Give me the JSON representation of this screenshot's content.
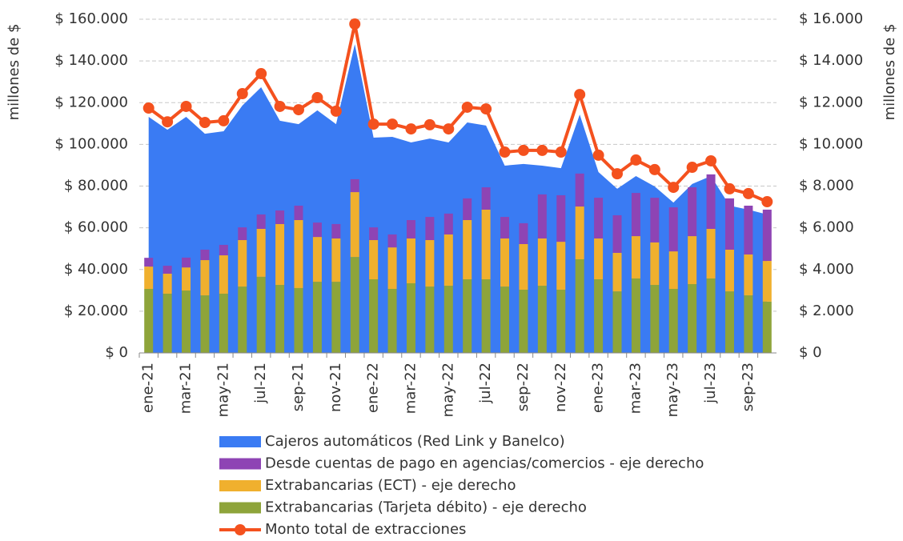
{
  "chart_data": {
    "type": "combo",
    "categories": [
      "ene-21",
      null,
      "mar-21",
      null,
      "may-21",
      null,
      "jul-21",
      null,
      "sep-21",
      null,
      "nov-21",
      null,
      "ene-22",
      null,
      "mar-22",
      null,
      "may-22",
      null,
      "jul-22",
      null,
      "sep-22",
      null,
      "nov-22",
      null,
      "ene-23",
      null,
      "mar-23",
      null,
      "may-23",
      null,
      "jul-23",
      null,
      "sep-23",
      null
    ],
    "series": [
      {
        "name": "Cajeros automáticos (Red Link y Banelco)",
        "type": "area",
        "axis": "y",
        "color": "#3a7bf3",
        "values": [
          113200,
          107000,
          113200,
          105100,
          106300,
          118600,
          127400,
          111300,
          109700,
          116300,
          109700,
          148000,
          103200,
          103600,
          100900,
          102800,
          100900,
          110500,
          109000,
          89800,
          90600,
          89800,
          88600,
          114300,
          86700,
          78700,
          84800,
          79800,
          72100,
          81000,
          84800,
          70600,
          68700,
          66400
        ]
      },
      {
        "name": "Desde cuentas de pago en agencias/comercios - eje derecho",
        "type": "bar",
        "axis": "y2",
        "color": "#8e44b4",
        "values": [
          420,
          380,
          470,
          500,
          500,
          610,
          690,
          650,
          690,
          690,
          690,
          620,
          610,
          620,
          880,
          1110,
          1000,
          1040,
          1070,
          1030,
          1000,
          2110,
          2230,
          1580,
          1950,
          1800,
          2070,
          2140,
          2110,
          2340,
          2610,
          2460,
          2340,
          2460
        ]
      },
      {
        "name": "Extrabancarias (ECT) - eje derecho",
        "type": "bar",
        "axis": "y2",
        "color": "#f0b02e",
        "values": [
          1070,
          960,
          1110,
          1690,
          1840,
          2230,
          2300,
          2920,
          3260,
          2150,
          2080,
          3110,
          1880,
          1990,
          2150,
          2230,
          2460,
          2840,
          3340,
          2310,
          2190,
          2270,
          2300,
          2530,
          1960,
          1850,
          2030,
          2040,
          1800,
          2300,
          2380,
          2000,
          1960,
          1950
        ]
      },
      {
        "name": "Extrabancarias (Tarjeta débito) - eje derecho",
        "type": "bar",
        "axis": "y2",
        "color": "#8ea43a",
        "values": [
          3070,
          2840,
          2990,
          2760,
          2840,
          3180,
          3650,
          3260,
          3110,
          3410,
          3410,
          4600,
          3530,
          3070,
          3340,
          3180,
          3220,
          3530,
          3530,
          3180,
          3030,
          3220,
          3030,
          4490,
          3530,
          2950,
          3570,
          3260,
          3070,
          3300,
          3570,
          2950,
          2760,
          2460
        ]
      },
      {
        "name": "Monto total de extracciones",
        "type": "line",
        "axis": "y",
        "color": "#f4511e",
        "values": [
          117400,
          110800,
          118200,
          110500,
          111300,
          124300,
          133900,
          118200,
          116600,
          122400,
          115900,
          157700,
          109700,
          109700,
          107400,
          109400,
          107400,
          117800,
          117000,
          96300,
          97100,
          97100,
          96300,
          123900,
          94800,
          85900,
          92500,
          87900,
          79400,
          89000,
          92100,
          78700,
          76400,
          72500
        ]
      }
    ],
    "ylabel": "millones de $",
    "y2label": "millones de $",
    "ylim": [
      0,
      160000
    ],
    "yticks": [
      {
        "value": 0,
        "label": "$ 0"
      },
      {
        "value": 20000,
        "label": "$ 20.000"
      },
      {
        "value": 40000,
        "label": "$ 40.000"
      },
      {
        "value": 60000,
        "label": "$ 60.000"
      },
      {
        "value": 80000,
        "label": "$ 80.000"
      },
      {
        "value": 100000,
        "label": "$ 100.000"
      },
      {
        "value": 120000,
        "label": "$ 120.000"
      },
      {
        "value": 140000,
        "label": "$ 140.000"
      },
      {
        "value": 160000,
        "label": "$ 160.000"
      }
    ],
    "y2lim": [
      0,
      16000
    ],
    "y2ticks": [
      {
        "value": 0,
        "label": "$ 0"
      },
      {
        "value": 2000,
        "label": "$ 2.000"
      },
      {
        "value": 4000,
        "label": "$ 4.000"
      },
      {
        "value": 6000,
        "label": "$ 6.000"
      },
      {
        "value": 8000,
        "label": "$ 8.000"
      },
      {
        "value": 10000,
        "label": "$ 10.000"
      },
      {
        "value": 12000,
        "label": "$ 12.000"
      },
      {
        "value": 14000,
        "label": "$ 14.000"
      },
      {
        "value": 16000,
        "label": "$ 16.000"
      }
    ],
    "grid": true
  }
}
